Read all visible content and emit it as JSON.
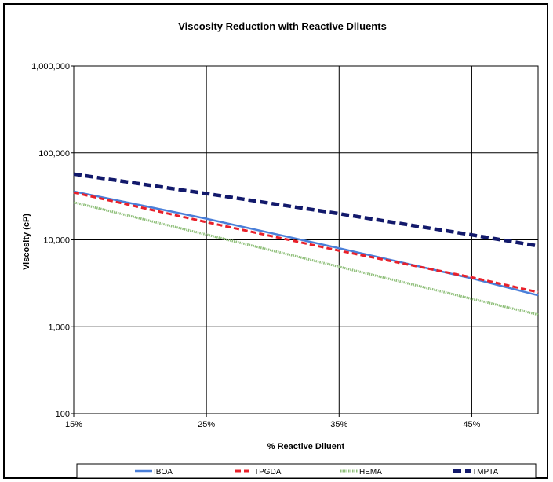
{
  "chart_data": {
    "type": "line",
    "title": "Viscosity Reduction with Reactive Diluents",
    "xlabel": "% Reactive Diluent",
    "ylabel": "Viscosity  (cP)",
    "x_ticks": [
      "15%",
      "25%",
      "35%",
      "45%"
    ],
    "y_ticks": [
      "100",
      "1,000",
      "10,000",
      "100,000",
      "1,000,000"
    ],
    "x_scale": "linear",
    "y_scale": "log",
    "xlim": [
      15,
      50
    ],
    "ylim": [
      100,
      1000000
    ],
    "grid": true,
    "legend_position": "bottom",
    "series": [
      {
        "name": "IBOA",
        "color": "#4a7fd9",
        "style": "solid",
        "x": [
          15,
          25,
          35,
          45,
          50
        ],
        "y": [
          36000,
          17500,
          8000,
          3600,
          2300
        ]
      },
      {
        "name": "TPGDA",
        "color": "#e8202a",
        "style": "dashed",
        "x": [
          15,
          25,
          35,
          45,
          50
        ],
        "y": [
          35000,
          16000,
          7500,
          3700,
          2500
        ]
      },
      {
        "name": "HEMA",
        "color": "#8fbf7a",
        "style": "hatched",
        "x": [
          15,
          25,
          35,
          45,
          50
        ],
        "y": [
          27000,
          11500,
          4900,
          2100,
          1380
        ]
      },
      {
        "name": "TMPTA",
        "color": "#12196b",
        "style": "bold-dashed",
        "x": [
          15,
          25,
          35,
          45,
          50
        ],
        "y": [
          57000,
          34000,
          20000,
          11400,
          8500
        ]
      }
    ]
  }
}
